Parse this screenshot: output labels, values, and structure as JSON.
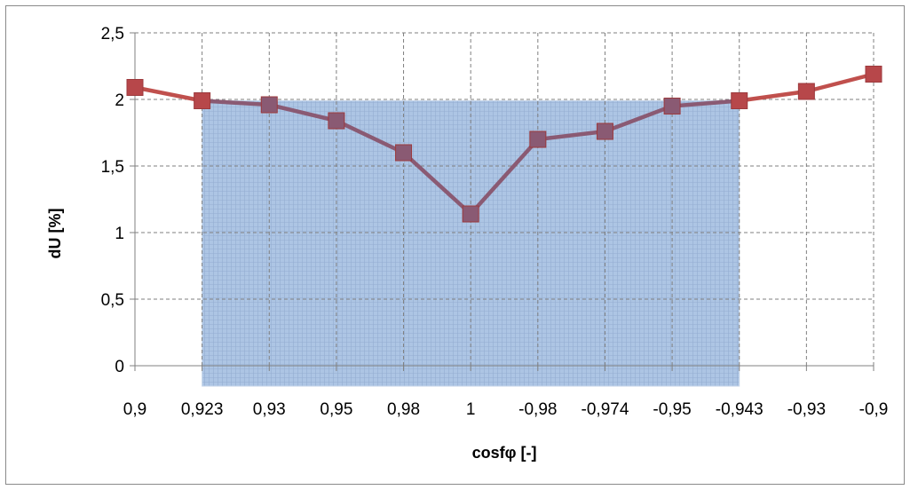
{
  "chart_data": {
    "type": "line",
    "categories": [
      "0,9",
      "0,923",
      "0,93",
      "0,95",
      "0,98",
      "1",
      "-0,98",
      "-0,974",
      "-0,95",
      "-0,943",
      "-0,93",
      "-0,9"
    ],
    "series": [
      {
        "values": [
          2.09,
          1.99,
          1.96,
          1.84,
          1.6,
          1.14,
          1.7,
          1.76,
          1.95,
          1.99,
          2.06,
          2.19
        ]
      }
    ],
    "highlight_region": {
      "from_category": "0,923",
      "to_category": "-0,943",
      "top_value": 1.99
    },
    "xlabel": "cosfφ [-]",
    "ylabel": "dU [%]",
    "ylim": [
      0,
      2.5
    ],
    "yticks": [
      0,
      0.5,
      1,
      1.5,
      2,
      2.5
    ],
    "ytick_labels": [
      "0",
      "0,5",
      "1",
      "1,5",
      "2",
      "2,5"
    ],
    "grid": true,
    "legend": "none",
    "colors": {
      "series_line": "#c0504d",
      "series_marker": "#b7474a",
      "overlap_line": "#8a5a73",
      "overlap_marker": "#8a5a73",
      "highlight_fill": "#a6bfe0",
      "grid": "#7f7f7f"
    }
  }
}
